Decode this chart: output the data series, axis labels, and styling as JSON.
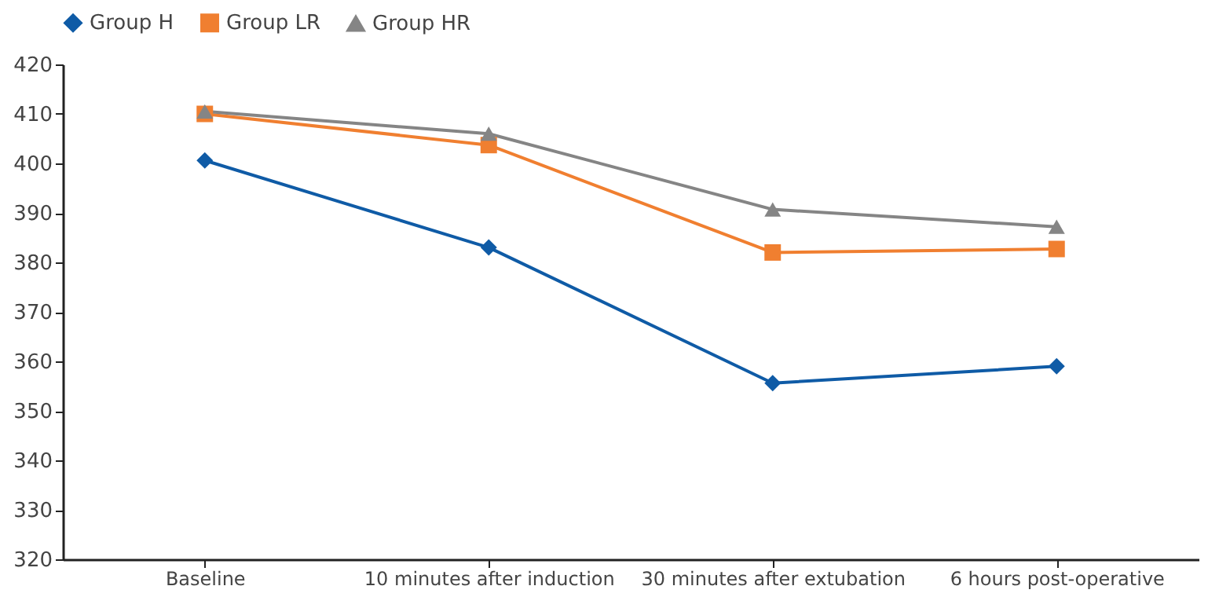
{
  "chart_data": {
    "type": "line",
    "categories": [
      "Baseline",
      "10 minutes after induction",
      "30 minutes after extubation",
      "6 hours post-operative"
    ],
    "series": [
      {
        "name": "Group H",
        "color": "#0f5ba6",
        "marker": "diamond",
        "values": [
          400.6,
          383,
          355.6,
          359
        ]
      },
      {
        "name": "Group LR",
        "color": "#f07f30",
        "marker": "square",
        "values": [
          410,
          403.7,
          382,
          382.7
        ]
      },
      {
        "name": "Group HR",
        "color": "#858585",
        "marker": "triangle",
        "values": [
          410.5,
          406,
          390.7,
          387.2
        ]
      }
    ],
    "ylim": [
      320,
      420
    ],
    "yticks": [
      320,
      330,
      340,
      350,
      360,
      370,
      380,
      390,
      400,
      410,
      420
    ],
    "grid": false,
    "legend": "top",
    "line_style": "solid"
  }
}
